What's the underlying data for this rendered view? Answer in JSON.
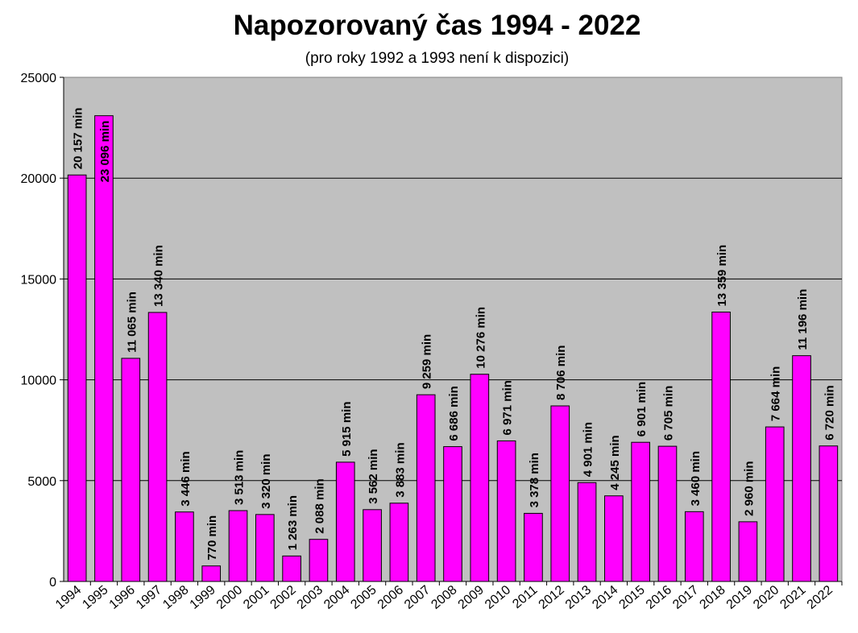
{
  "chart_data": {
    "type": "bar",
    "title": "Napozorovaný čas 1994 - 2022",
    "subtitle": "(pro roky 1992 a 1993 není k dispozici)",
    "categories": [
      "1994",
      "1995",
      "1996",
      "1997",
      "1998",
      "1999",
      "2000",
      "2001",
      "2002",
      "2003",
      "2004",
      "2005",
      "2006",
      "2007",
      "2008",
      "2009",
      "2010",
      "2011",
      "2012",
      "2013",
      "2014",
      "2015",
      "2016",
      "2017",
      "2018",
      "2019",
      "2020",
      "2021",
      "2022"
    ],
    "values": [
      20157,
      23096,
      11065,
      13340,
      3446,
      770,
      3513,
      3320,
      1263,
      2088,
      5915,
      3562,
      3883,
      9259,
      6686,
      10276,
      6971,
      3378,
      8706,
      4901,
      4245,
      6901,
      6705,
      3460,
      13359,
      2960,
      7664,
      11196,
      6720
    ],
    "data_labels": [
      "20 157 min",
      "23 096 min",
      "11 065 min",
      "13 340 min",
      "3 446 min",
      "770 min",
      "3 513 min",
      "3 320 min",
      "1 263 min",
      "2 088 min",
      "5 915 min",
      "3 562 min",
      "3 883 min",
      "9 259 min",
      "6 686 min",
      "10 276 min",
      "6 971 min",
      "3 378 min",
      "8 706 min",
      "4 901 min",
      "4 245 min",
      "6 901 min",
      "6 705 min",
      "3 460 min",
      "13 359 min",
      "2 960 min",
      "7 664 min",
      "11 196 min",
      "6 720 min"
    ],
    "y_ticks": [
      "0",
      "5000",
      "10000",
      "15000",
      "20000",
      "25000"
    ],
    "ylim": [
      0,
      25000
    ],
    "grid": true,
    "legend": false,
    "bar_color": "#ff00ff",
    "plot_background": "#c0c0c0"
  }
}
